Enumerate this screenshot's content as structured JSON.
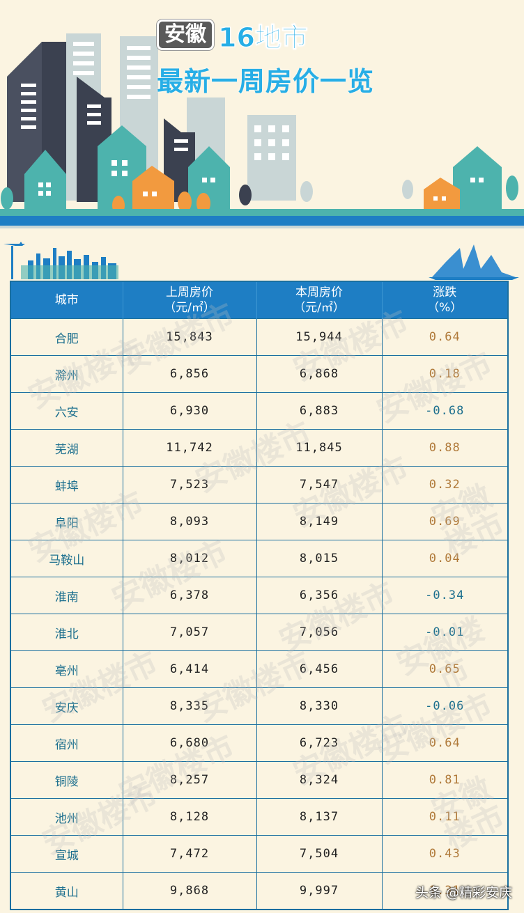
{
  "header": {
    "region": "安徽",
    "title_line1": "16地市",
    "title_line2": "最新一周房价一览"
  },
  "table": {
    "columns": [
      {
        "line1": "城市",
        "line2": ""
      },
      {
        "line1": "上周房价",
        "line2": "（元/㎡）"
      },
      {
        "line1": "本周房价",
        "line2": "（元/㎡）"
      },
      {
        "line1": "涨跌",
        "line2": "（%）"
      }
    ],
    "rows": [
      {
        "city": "合肥",
        "last": "15,843",
        "this": "15,944",
        "change": "0.64"
      },
      {
        "city": "滁州",
        "last": "6,856",
        "this": "6,868",
        "change": "0.18"
      },
      {
        "city": "六安",
        "last": "6,930",
        "this": "6,883",
        "change": "-0.68"
      },
      {
        "city": "芜湖",
        "last": "11,742",
        "this": "11,845",
        "change": "0.88"
      },
      {
        "city": "蚌埠",
        "last": "7,523",
        "this": "7,547",
        "change": "0.32"
      },
      {
        "city": "阜阳",
        "last": "8,093",
        "this": "8,149",
        "change": "0.69"
      },
      {
        "city": "马鞍山",
        "last": "8,012",
        "this": "8,015",
        "change": "0.04"
      },
      {
        "city": "淮南",
        "last": "6,378",
        "this": "6,356",
        "change": "-0.34"
      },
      {
        "city": "淮北",
        "last": "7,057",
        "this": "7,056",
        "change": "-0.01"
      },
      {
        "city": "亳州",
        "last": "6,414",
        "this": "6,456",
        "change": "0.65"
      },
      {
        "city": "安庆",
        "last": "8,335",
        "this": "8,330",
        "change": "-0.06"
      },
      {
        "city": "宿州",
        "last": "6,680",
        "this": "6,723",
        "change": "0.64"
      },
      {
        "city": "铜陵",
        "last": "8,257",
        "this": "8,324",
        "change": "0.81"
      },
      {
        "city": "池州",
        "last": "8,128",
        "this": "8,137",
        "change": "0.11"
      },
      {
        "city": "宣城",
        "last": "7,472",
        "this": "7,504",
        "change": "0.43"
      },
      {
        "city": "黄山",
        "last": "9,868",
        "this": "9,997",
        "change": "1.31"
      }
    ]
  },
  "watermark": "安徽楼市",
  "credit": "头条 @精彩安庆",
  "colors": {
    "header_blue": "#1e7ec4",
    "title_blue": "#27aee6",
    "up": "#b07a3a",
    "down": "#1d6f8e"
  }
}
